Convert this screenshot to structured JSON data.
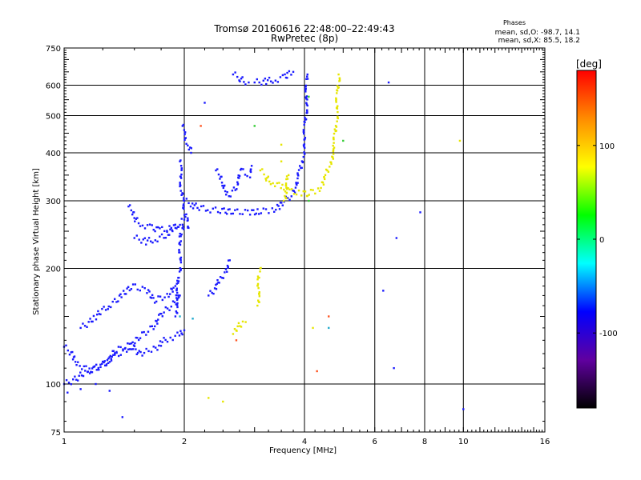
{
  "chart_data": {
    "type": "scatter",
    "title": "Tromsø 20160616 22:48:00–22:49:43",
    "subtitle": "RwPretec (8p)",
    "xlabel": "Frequency [MHz]",
    "ylabel": "Stationary phase Virtual Height [km]",
    "x_scale": "log",
    "y_scale": "log",
    "xlim": [
      1,
      16
    ],
    "ylim": [
      75,
      750
    ],
    "x_ticks": [
      1,
      2,
      4,
      6,
      8,
      10,
      16
    ],
    "y_ticks": [
      75,
      100,
      200,
      300,
      400,
      500,
      600,
      750
    ],
    "x_grid": [
      2,
      4,
      6,
      8,
      10
    ],
    "y_grid": [
      100,
      200,
      300,
      400,
      500,
      600
    ],
    "grid": true,
    "phase_stats": {
      "heading": "Phases",
      "o_line": "mean, sd,O: -98.7, 14.1",
      "x_line": "mean, sd,X:  85.5, 18.2"
    },
    "colorbar": {
      "label": "[deg]",
      "min": -180,
      "max": 180,
      "ticks": [
        100,
        0,
        -100
      ],
      "colors": [
        "#ff0000",
        "#ff8c00",
        "#ffff00",
        "#00ff00",
        "#00ffff",
        "#0000ff",
        "#6000a0",
        "#000000"
      ]
    },
    "series": [
      {
        "color": "#1a1aff",
        "segments": [
          [
            [
              1.0,
              125
            ],
            [
              1.05,
              118
            ],
            [
              1.1,
              112
            ],
            [
              1.15,
              108
            ],
            [
              1.2,
              110
            ],
            [
              1.28,
              115
            ],
            [
              1.35,
              122
            ],
            [
              1.45,
              126
            ],
            [
              1.55,
              120
            ],
            [
              1.65,
              122
            ],
            [
              1.75,
              128
            ],
            [
              1.85,
              132
            ],
            [
              1.95,
              135
            ],
            [
              2.0,
              138
            ]
          ],
          [
            [
              1.0,
              100
            ],
            [
              1.08,
              104
            ],
            [
              1.15,
              108
            ],
            [
              1.25,
              112
            ],
            [
              1.35,
              118
            ],
            [
              1.45,
              125
            ],
            [
              1.55,
              132
            ],
            [
              1.65,
              140
            ],
            [
              1.75,
              150
            ],
            [
              1.85,
              160
            ],
            [
              1.95,
              170
            ]
          ],
          [
            [
              1.1,
              140
            ],
            [
              1.2,
              150
            ],
            [
              1.3,
              160
            ],
            [
              1.4,
              172
            ],
            [
              1.5,
              180
            ],
            [
              1.6,
              175
            ],
            [
              1.7,
              165
            ],
            [
              1.8,
              170
            ],
            [
              1.9,
              180
            ]
          ],
          [
            [
              1.45,
              290
            ],
            [
              1.5,
              270
            ],
            [
              1.58,
              260
            ],
            [
              1.65,
              255
            ],
            [
              1.75,
              252
            ],
            [
              1.85,
              255
            ],
            [
              1.95,
              260
            ],
            [
              2.0,
              268
            ]
          ],
          [
            [
              1.5,
              240
            ],
            [
              1.6,
              235
            ],
            [
              1.7,
              238
            ],
            [
              1.8,
              245
            ],
            [
              1.9,
              255
            ]
          ],
          [
            [
              1.95,
              380
            ],
            [
              1.96,
              350
            ],
            [
              1.97,
              320
            ],
            [
              1.98,
              300
            ],
            [
              2.0,
              285
            ],
            [
              2.02,
              270
            ],
            [
              2.05,
              255
            ]
          ],
          [
            [
              1.9,
              150
            ],
            [
              1.92,
              170
            ],
            [
              1.94,
              190
            ],
            [
              1.95,
              210
            ],
            [
              1.96,
              240
            ],
            [
              1.98,
              260
            ]
          ],
          [
            [
              2.0,
              300
            ],
            [
              2.1,
              292
            ],
            [
              2.3,
              285
            ],
            [
              2.5,
              282
            ],
            [
              2.7,
              281
            ],
            [
              2.9,
              280
            ],
            [
              3.1,
              281
            ],
            [
              3.3,
              284
            ],
            [
              3.5,
              292
            ],
            [
              3.7,
              310
            ],
            [
              3.85,
              340
            ],
            [
              3.95,
              380
            ],
            [
              4.0,
              430
            ],
            [
              4.02,
              480
            ],
            [
              4.04,
              540
            ],
            [
              4.06,
              600
            ],
            [
              4.07,
              640
            ]
          ],
          [
            [
              2.4,
              360
            ],
            [
              2.5,
              330
            ],
            [
              2.6,
              310
            ],
            [
              2.7,
              330
            ],
            [
              2.8,
              360
            ],
            [
              2.9,
              350
            ],
            [
              2.95,
              370
            ]
          ],
          [
            [
              2.3,
              170
            ],
            [
              2.4,
              180
            ],
            [
              2.5,
              190
            ],
            [
              2.55,
              200
            ],
            [
              2.6,
              210
            ]
          ],
          [
            [
              1.98,
              470
            ],
            [
              2.0,
              440
            ],
            [
              2.05,
              420
            ],
            [
              2.08,
              400
            ]
          ],
          [
            [
              3.0,
              610
            ],
            [
              3.2,
              615
            ],
            [
              3.4,
              620
            ],
            [
              3.55,
              630
            ],
            [
              3.65,
              640
            ],
            [
              3.75,
              650
            ]
          ],
          [
            [
              2.65,
              640
            ],
            [
              2.75,
              625
            ],
            [
              2.9,
              610
            ]
          ]
        ],
        "scatter": [
          [
            1.02,
            95
          ],
          [
            1.1,
            97
          ],
          [
            1.2,
            100
          ],
          [
            1.3,
            96
          ],
          [
            1.4,
            82
          ],
          [
            2.25,
            540
          ],
          [
            6.5,
            610
          ],
          [
            6.8,
            240
          ],
          [
            6.7,
            110
          ],
          [
            7.8,
            280
          ],
          [
            10.0,
            86
          ],
          [
            6.3,
            175
          ]
        ]
      },
      {
        "color": "#e6e600",
        "segments": [
          [
            [
              3.1,
              360
            ],
            [
              3.2,
              345
            ],
            [
              3.35,
              335
            ],
            [
              3.5,
              325
            ],
            [
              3.7,
              318
            ],
            [
              3.9,
              314
            ],
            [
              4.1,
              313
            ],
            [
              4.3,
              320
            ],
            [
              4.5,
              340
            ],
            [
              4.65,
              380
            ],
            [
              4.75,
              420
            ],
            [
              4.8,
              470
            ],
            [
              4.82,
              520
            ],
            [
              4.85,
              580
            ],
            [
              4.87,
              640
            ]
          ],
          [
            [
              3.55,
              300
            ],
            [
              3.6,
              320
            ],
            [
              3.65,
              350
            ]
          ],
          [
            [
              3.05,
              160
            ],
            [
              3.07,
              175
            ],
            [
              3.08,
              190
            ],
            [
              3.1,
              200
            ]
          ],
          [
            [
              2.65,
              135
            ],
            [
              2.7,
              140
            ],
            [
              2.85,
              145
            ]
          ]
        ],
        "scatter": [
          [
            2.3,
            92
          ],
          [
            2.5,
            90
          ],
          [
            3.5,
            420
          ],
          [
            3.5,
            380
          ],
          [
            9.8,
            430
          ],
          [
            4.2,
            140
          ]
        ]
      },
      {
        "color": "#33cc33",
        "scatter": [
          [
            3.0,
            470
          ],
          [
            4.1,
            300
          ],
          [
            5.0,
            430
          ],
          [
            4.1,
            560
          ]
        ]
      },
      {
        "color": "#ff5522",
        "scatter": [
          [
            2.2,
            470
          ],
          [
            2.7,
            130
          ],
          [
            4.3,
            108
          ],
          [
            4.6,
            150
          ]
        ]
      },
      {
        "color": "#22aacc",
        "scatter": [
          [
            1.95,
            150
          ],
          [
            2.1,
            148
          ],
          [
            4.6,
            140
          ]
        ]
      }
    ]
  }
}
